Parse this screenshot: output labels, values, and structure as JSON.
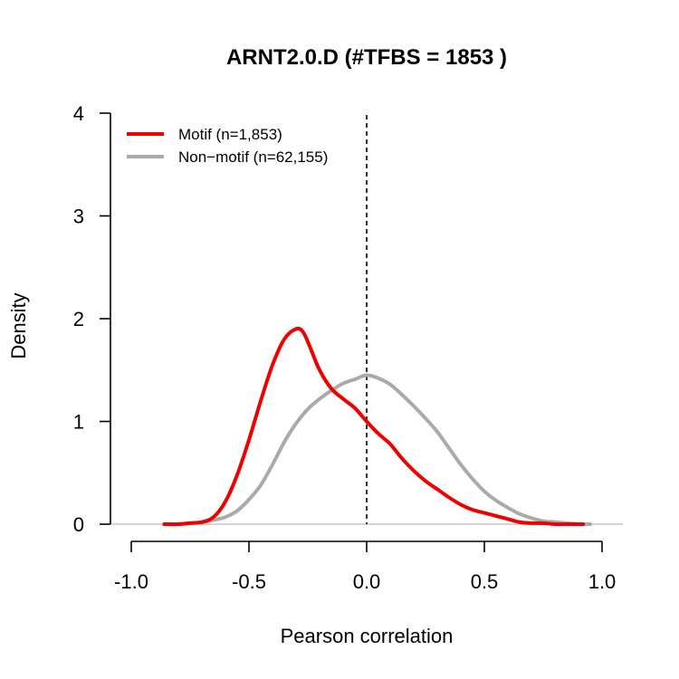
{
  "chart_data": {
    "type": "line",
    "title": "ARNT2.0.D (#TFBS = 1853 )",
    "xlabel": "Pearson correlation",
    "ylabel": "Density",
    "xlim": [
      -1.0,
      1.0
    ],
    "ylim": [
      0,
      4
    ],
    "x_ticks": [
      "-1.0",
      "-0.5",
      "0.0",
      "0.5",
      "1.0"
    ],
    "x_tick_values": [
      -1.0,
      -0.5,
      0.0,
      0.5,
      1.0
    ],
    "y_ticks": [
      "0",
      "1",
      "2",
      "3",
      "4"
    ],
    "y_tick_values": [
      0,
      1,
      2,
      3,
      4
    ],
    "vline_x": 0.0,
    "hline_y": 0,
    "legend_position": "top-left",
    "grid": false,
    "series": [
      {
        "name": "Motif (n=1,853)",
        "color": "#ee0000",
        "x": [
          -0.86,
          -0.8,
          -0.75,
          -0.7,
          -0.65,
          -0.6,
          -0.55,
          -0.5,
          -0.45,
          -0.4,
          -0.35,
          -0.3,
          -0.27,
          -0.24,
          -0.2,
          -0.15,
          -0.1,
          -0.05,
          0.0,
          0.05,
          0.1,
          0.15,
          0.2,
          0.25,
          0.3,
          0.35,
          0.4,
          0.45,
          0.5,
          0.55,
          0.6,
          0.65,
          0.7,
          0.75,
          0.8,
          0.85,
          0.92
        ],
        "y": [
          0.0,
          0.0,
          0.01,
          0.02,
          0.07,
          0.22,
          0.48,
          0.82,
          1.2,
          1.55,
          1.8,
          1.9,
          1.87,
          1.72,
          1.5,
          1.32,
          1.22,
          1.13,
          1.0,
          0.88,
          0.78,
          0.64,
          0.52,
          0.42,
          0.34,
          0.26,
          0.19,
          0.14,
          0.11,
          0.08,
          0.05,
          0.02,
          0.01,
          0.01,
          0.0,
          0.0,
          0.0
        ]
      },
      {
        "name": "Non−motif (n=62,155)",
        "color": "#aaaaaa",
        "x": [
          -0.86,
          -0.8,
          -0.75,
          -0.7,
          -0.65,
          -0.6,
          -0.55,
          -0.5,
          -0.45,
          -0.4,
          -0.35,
          -0.3,
          -0.25,
          -0.2,
          -0.15,
          -0.1,
          -0.05,
          0.0,
          0.05,
          0.1,
          0.15,
          0.2,
          0.25,
          0.3,
          0.35,
          0.4,
          0.45,
          0.5,
          0.55,
          0.6,
          0.65,
          0.7,
          0.75,
          0.8,
          0.85,
          0.9,
          0.95
        ],
        "y": [
          0.0,
          0.0,
          0.01,
          0.02,
          0.04,
          0.07,
          0.13,
          0.24,
          0.38,
          0.58,
          0.8,
          0.98,
          1.12,
          1.22,
          1.3,
          1.37,
          1.41,
          1.45,
          1.42,
          1.36,
          1.26,
          1.15,
          1.03,
          0.9,
          0.74,
          0.58,
          0.44,
          0.32,
          0.23,
          0.16,
          0.1,
          0.06,
          0.03,
          0.02,
          0.01,
          0.0,
          0.0
        ]
      }
    ]
  }
}
